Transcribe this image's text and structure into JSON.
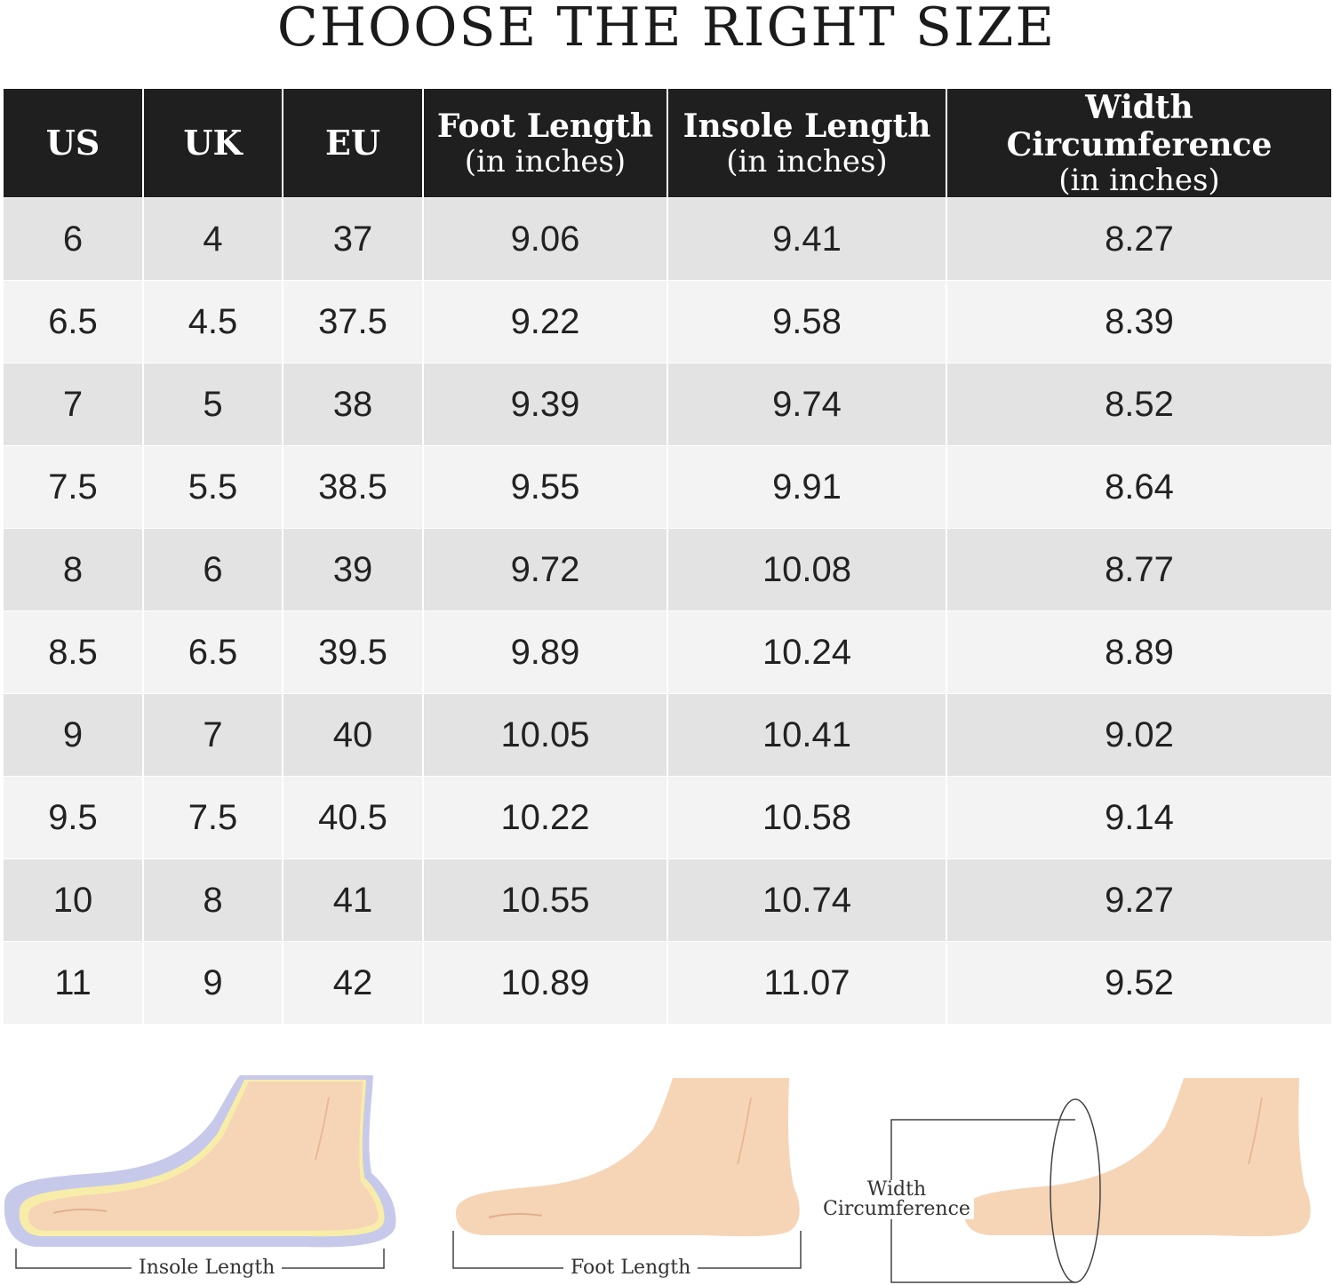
{
  "title": "CHOOSE THE RIGHT SIZE",
  "table": {
    "headers": [
      {
        "main": "US",
        "sub": ""
      },
      {
        "main": "UK",
        "sub": ""
      },
      {
        "main": "EU",
        "sub": ""
      },
      {
        "main": "Foot Length",
        "sub": "(in inches)"
      },
      {
        "main": "Insole Length",
        "sub": "(in inches)"
      },
      {
        "main": "Width Circumference",
        "sub": "(in inches)"
      }
    ],
    "rows": [
      [
        "6",
        "4",
        "37",
        "9.06",
        "9.41",
        "8.27"
      ],
      [
        "6.5",
        "4.5",
        "37.5",
        "9.22",
        "9.58",
        "8.39"
      ],
      [
        "7",
        "5",
        "38",
        "9.39",
        "9.74",
        "8.52"
      ],
      [
        "7.5",
        "5.5",
        "38.5",
        "9.55",
        "9.91",
        "8.64"
      ],
      [
        "8",
        "6",
        "39",
        "9.72",
        "10.08",
        "8.77"
      ],
      [
        "8.5",
        "6.5",
        "39.5",
        "9.89",
        "10.24",
        "8.89"
      ],
      [
        "9",
        "7",
        "40",
        "10.05",
        "10.41",
        "9.02"
      ],
      [
        "9.5",
        "7.5",
        "40.5",
        "10.22",
        "10.58",
        "9.14"
      ],
      [
        "10",
        "8",
        "41",
        "10.55",
        "10.74",
        "9.27"
      ],
      [
        "11",
        "9",
        "42",
        "10.89",
        "11.07",
        "9.52"
      ]
    ]
  },
  "illustrations": {
    "insole": {
      "caption": "Insole Length",
      "icon": "foot-insole-icon"
    },
    "foot": {
      "caption": "Foot Length",
      "icon": "foot-side-icon"
    },
    "width": {
      "caption_line1": "Width",
      "caption_line2": "Circumference",
      "icon": "foot-circumference-icon"
    }
  },
  "colors": {
    "header_bg": "#1f1f1f",
    "row_dark": "#e3e3e3",
    "row_light": "#f3f3f3",
    "skin": "#f6d5b7",
    "insole_outline": "#c7c9ea",
    "insole_fill": "#f8eda8"
  }
}
